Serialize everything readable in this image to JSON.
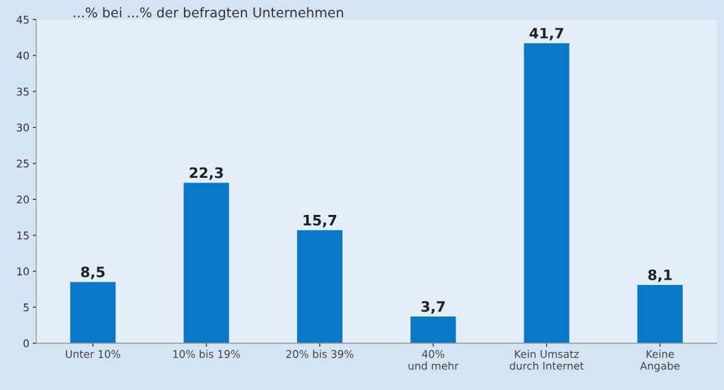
{
  "chart_data": {
    "type": "bar",
    "title": "...% bei ...% der befragten Unternehmen",
    "categories": [
      "Unter 10%",
      "10% bis 19%",
      "20% bis 39%",
      "40%\nund mehr",
      "Kein Umsatz\ndurch Internet",
      "Keine\nAngabe"
    ],
    "values": [
      8.5,
      22.3,
      15.7,
      3.7,
      41.7,
      8.1
    ],
    "value_labels": [
      "8,5",
      "22,3",
      "15,7",
      "3,7",
      "41,7",
      "8,1"
    ],
    "color": "#0a78c8",
    "ylim": [
      0,
      45
    ],
    "yticks": [
      0,
      5,
      10,
      15,
      20,
      25,
      30,
      35,
      40,
      45
    ],
    "grid": false
  }
}
